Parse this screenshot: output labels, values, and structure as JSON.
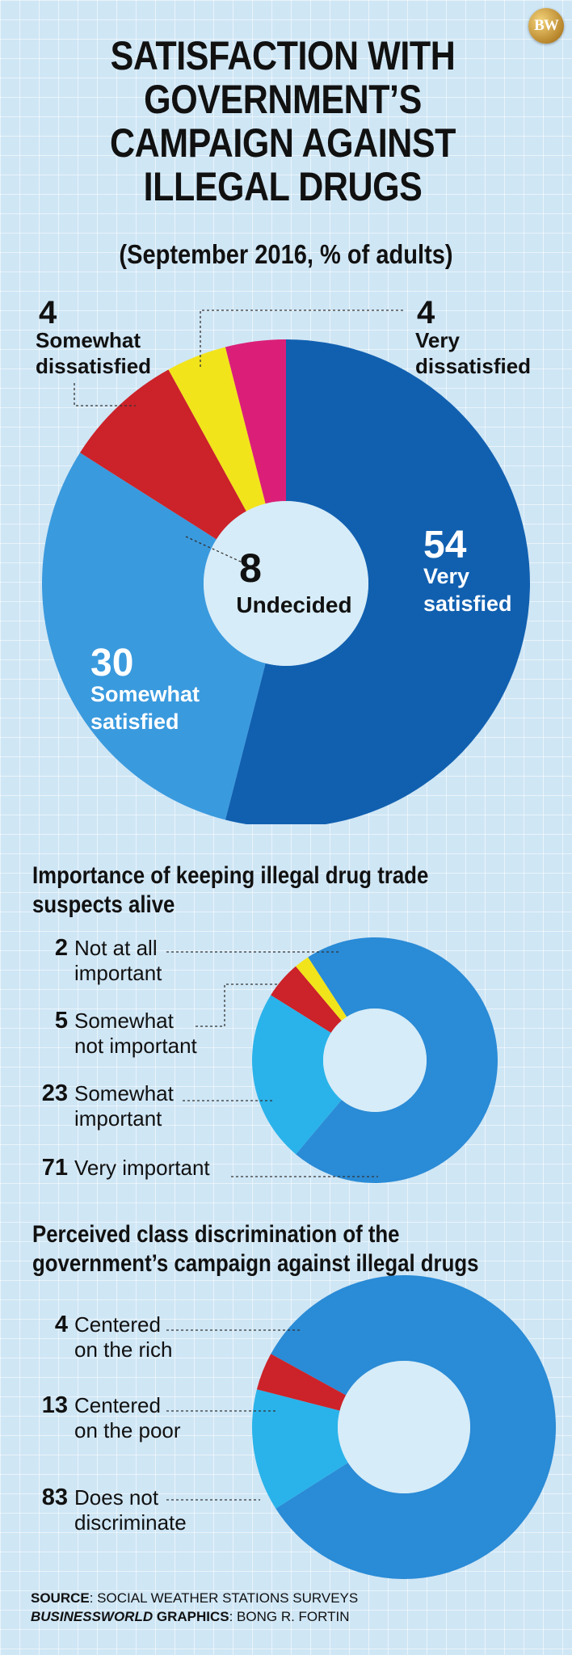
{
  "logo": {
    "text": "BW"
  },
  "title": "SATISFACTION WITH GOVERNMENT’S CAMPAIGN AGAINST ILLEGAL DRUGS",
  "subtitle": "(September 2016, % of adults)",
  "colors": {
    "very_satisfied": "#1160b0",
    "somewhat_satisfied": "#3a9ade",
    "undecided": "#cfe6f5",
    "somewhat_dissatisfied": "#f2e41a",
    "very_dissatisfied": "#db1f78",
    "red": "#cc2229",
    "mid_blue": "#2a8bd6",
    "light_blue": "#2ab3ea",
    "yellow": "#f2e41a",
    "hole": "#d6ecf8"
  },
  "chart_data": [
    {
      "type": "pie",
      "title": "SATISFACTION WITH GOVERNMENT’S CAMPAIGN AGAINST ILLEGAL DRUGS",
      "subtitle": "(September 2016, % of adults)",
      "slices": [
        {
          "label": "Very satisfied",
          "value": 54
        },
        {
          "label": "Somewhat satisfied",
          "value": 30
        },
        {
          "label": "Undecided",
          "value": 8
        },
        {
          "label": "Somewhat dissatisfied",
          "value": 4
        },
        {
          "label": "Very dissatisfied",
          "value": 4
        }
      ]
    },
    {
      "type": "pie",
      "title": "Importance of keeping illegal drug trade suspects alive",
      "slices": [
        {
          "label": "Not at all important",
          "value": 2
        },
        {
          "label": "Somewhat not important",
          "value": 5
        },
        {
          "label": "Somewhat important",
          "value": 23
        },
        {
          "label": "Very important",
          "value": 71
        }
      ]
    },
    {
      "type": "pie",
      "title": "Perceived class discrimination of the government’s campaign against illegal drugs",
      "slices": [
        {
          "label": "Centered on the rich",
          "value": 4
        },
        {
          "label": "Centered on the poor",
          "value": 13
        },
        {
          "label": "Does not discriminate",
          "value": 83
        }
      ]
    }
  ],
  "donut1_labels": {
    "very_satisfied": {
      "value": "54",
      "line1": "Very",
      "line2": "satisfied"
    },
    "somewhat_satisfied": {
      "value": "30",
      "line1": "Somewhat",
      "line2": "satisfied"
    },
    "undecided": {
      "value": "8",
      "line1": "Undecided"
    },
    "somewhat_dissatisfied": {
      "value": "4",
      "line1": "Somewhat",
      "line2": "dissatisfied"
    },
    "very_dissatisfied": {
      "value": "4",
      "line1": "Very",
      "line2": "dissatisfied"
    }
  },
  "donut2_labels": [
    {
      "value": "2",
      "line1": "Not at all",
      "line2": "important"
    },
    {
      "value": "5",
      "line1": "Somewhat",
      "line2": "not important"
    },
    {
      "value": "23",
      "line1": "Somewhat",
      "line2": "important"
    },
    {
      "value": "71",
      "line1": "Very important",
      "line2": ""
    }
  ],
  "donut3_labels": [
    {
      "value": "4",
      "line1": "Centered",
      "line2": "on the rich"
    },
    {
      "value": "13",
      "line1": "Centered",
      "line2": "on the poor"
    },
    {
      "value": "83",
      "line1": "Does not",
      "line2": "discriminate"
    }
  ],
  "section2_title": "Importance of keeping illegal drug trade suspects alive",
  "section3_title": "Perceived class discrimination of the government’s campaign against illegal drugs",
  "source": {
    "label": "SOURCE",
    "text": ": SOCIAL WEATHER STATIONS SURVEYS",
    "credit_brand": "BUSINESSWORLD",
    "credit_label": " GRAPHICS",
    "credit_text": ": BONG R. FORTIN"
  }
}
